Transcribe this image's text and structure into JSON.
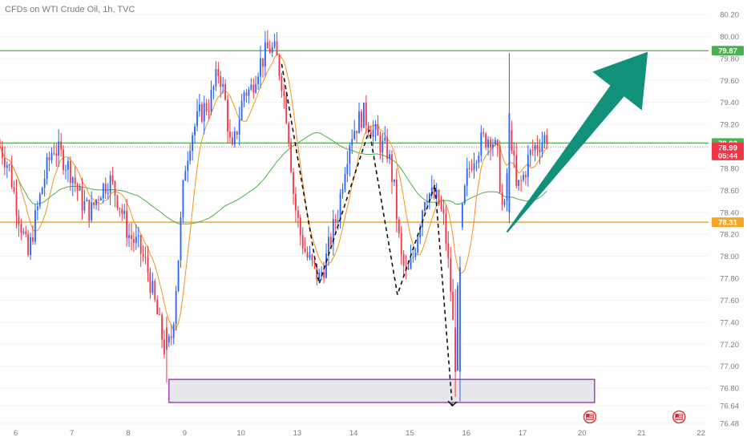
{
  "header": {
    "title": "CFDs on WTI Crude Oil, 1h, TVC"
  },
  "colors": {
    "bull": "#2962ff",
    "bear": "#f23645",
    "ema_fast": "#f7931a",
    "ma_slow": "#4caf50",
    "resistance": "#4caf50",
    "support": "#f5a623",
    "zone_border": "#9c27b0",
    "zone_fill": "#e6e6ec",
    "arrow": "#12917a",
    "axis_text": "#787b86"
  },
  "chart_data": {
    "type": "candlestick",
    "symbol": "CFDs on WTI Crude Oil",
    "timeframe": "1h",
    "ylim": [
      76.48,
      80.2
    ],
    "y_ticks": [
      "76.48",
      "76.64",
      "76.80",
      "77.00",
      "77.20",
      "77.40",
      "77.60",
      "77.80",
      "78.00",
      "78.20",
      "78.40",
      "78.60",
      "78.80",
      "79.00",
      "79.20",
      "79.40",
      "79.60",
      "79.80",
      "80.00",
      "80.20"
    ],
    "x_ticks": [
      "6",
      "7",
      "8",
      "9",
      "10",
      "13",
      "14",
      "15",
      "16",
      "17",
      "20",
      "21",
      "22"
    ],
    "x_range": [
      0,
      24
    ],
    "x_tick_positions": [
      0.5,
      2.3,
      4.1,
      5.9,
      7.7,
      9.5,
      11.3,
      13.1,
      14.9,
      16.7,
      18.6,
      20.5,
      22.4
    ],
    "path_points": [
      [
        0,
        79.0
      ],
      [
        0.3,
        78.8
      ],
      [
        0.5,
        78.5
      ],
      [
        0.7,
        78.25
      ],
      [
        0.9,
        78.0
      ],
      [
        1.1,
        78.3
      ],
      [
        1.4,
        78.7
      ],
      [
        1.7,
        79.0
      ],
      [
        2.0,
        78.9
      ],
      [
        2.3,
        78.75
      ],
      [
        2.6,
        78.5
      ],
      [
        2.9,
        78.4
      ],
      [
        3.2,
        78.6
      ],
      [
        3.5,
        78.7
      ],
      [
        3.8,
        78.5
      ],
      [
        4.1,
        78.2
      ],
      [
        4.4,
        78.1
      ],
      [
        4.7,
        77.9
      ],
      [
        5.0,
        77.5
      ],
      [
        5.3,
        77.1
      ],
      [
        5.5,
        77.3
      ],
      [
        5.7,
        78.0
      ],
      [
        5.9,
        78.8
      ],
      [
        6.1,
        79.1
      ],
      [
        6.4,
        79.3
      ],
      [
        6.7,
        79.4
      ],
      [
        7.0,
        79.7
      ],
      [
        7.2,
        79.4
      ],
      [
        7.4,
        78.9
      ],
      [
        7.6,
        79.2
      ],
      [
        7.8,
        79.5
      ],
      [
        8.0,
        79.5
      ],
      [
        8.2,
        79.7
      ],
      [
        8.4,
        79.8
      ],
      [
        8.6,
        79.9
      ],
      [
        8.8,
        79.85
      ],
      [
        9.0,
        79.6
      ],
      [
        9.2,
        79.2
      ],
      [
        9.4,
        78.5
      ],
      [
        9.6,
        78.2
      ],
      [
        9.8,
        78.0
      ],
      [
        10.0,
        77.9
      ],
      [
        10.2,
        77.8
      ],
      [
        10.4,
        77.95
      ],
      [
        10.6,
        78.2
      ],
      [
        10.8,
        78.4
      ],
      [
        11.0,
        78.8
      ],
      [
        11.2,
        79.1
      ],
      [
        11.4,
        79.2
      ],
      [
        11.6,
        79.3
      ],
      [
        11.8,
        79.2
      ],
      [
        12.0,
        79.1
      ],
      [
        12.2,
        79.0
      ],
      [
        12.4,
        78.95
      ],
      [
        12.6,
        78.6
      ],
      [
        12.8,
        78.0
      ],
      [
        13.0,
        77.8
      ],
      [
        13.2,
        78.0
      ],
      [
        13.4,
        78.3
      ],
      [
        13.6,
        78.6
      ],
      [
        13.8,
        78.55
      ],
      [
        14.0,
        78.5
      ],
      [
        14.2,
        78.3
      ],
      [
        14.4,
        77.7
      ],
      [
        14.55,
        77.05
      ],
      [
        14.7,
        78.2
      ],
      [
        14.9,
        78.7
      ],
      [
        15.1,
        78.9
      ],
      [
        15.4,
        79.05
      ],
      [
        15.7,
        79.1
      ],
      [
        15.9,
        78.9
      ],
      [
        16.1,
        78.3
      ],
      [
        16.3,
        79.2
      ],
      [
        16.5,
        78.6
      ],
      [
        16.7,
        78.7
      ],
      [
        16.9,
        78.9
      ],
      [
        17.1,
        79.0
      ],
      [
        17.3,
        79.05
      ],
      [
        17.5,
        79.1
      ]
    ],
    "special_candles": [
      {
        "x": 5.3,
        "open": 77.35,
        "close": 77.15,
        "high": 77.45,
        "low": 76.85
      },
      {
        "x": 14.55,
        "open": 77.35,
        "close": 76.95,
        "high": 77.7,
        "low": 76.72
      },
      {
        "x": 14.7,
        "open": 76.95,
        "close": 77.9,
        "high": 78.0,
        "low": 76.68
      },
      {
        "x": 16.3,
        "open": 78.4,
        "close": 79.3,
        "high": 79.85,
        "low": 78.3
      }
    ],
    "dashed_path": [
      [
        9.0,
        79.75
      ],
      [
        10.2,
        77.75
      ],
      [
        11.8,
        79.15
      ],
      [
        12.7,
        77.65
      ],
      [
        13.9,
        78.65
      ],
      [
        14.45,
        76.64
      ]
    ],
    "horizontal_levels": [
      {
        "price": 79.87,
        "label": "79.87",
        "role": "resistance"
      },
      {
        "price": 79.03,
        "label": "79.03",
        "role": "resistance"
      },
      {
        "price": 78.31,
        "label": "78.31",
        "role": "support"
      }
    ],
    "dotted_level": 78.99,
    "last_price": {
      "value": "78.99",
      "countdown": "05:44",
      "color": "#f23645"
    },
    "demand_zone": {
      "x_start": 5.4,
      "x_end": 19.0,
      "low": 76.67,
      "high": 76.88
    },
    "arrow": {
      "from": [
        16.2,
        78.22
      ],
      "to": [
        20.7,
        79.86
      ]
    },
    "event_icon_positions": [
      18.85,
      21.7
    ]
  }
}
